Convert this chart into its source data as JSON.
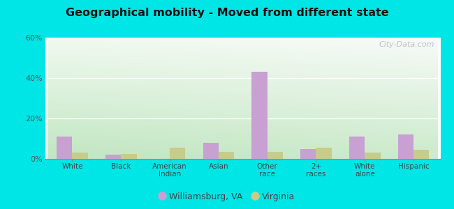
{
  "title": "Geographical mobility - Moved from different state",
  "categories": [
    "White",
    "Black",
    "American\nIndian",
    "Asian",
    "Other\nrace",
    "2+\nraces",
    "White\nalone",
    "Hispanic"
  ],
  "williamsburg": [
    11,
    2,
    0,
    8,
    43,
    5,
    11,
    12
  ],
  "virginia": [
    3,
    2.5,
    5.5,
    3.5,
    3.5,
    5.5,
    3,
    4.5
  ],
  "color_williamsburg": "#c8a0d2",
  "color_virginia": "#c8cc88",
  "ylim": [
    0,
    60
  ],
  "yticks": [
    0,
    20,
    40,
    60
  ],
  "ytick_labels": [
    "0%",
    "20%",
    "40%",
    "60%"
  ],
  "bg_top_left": "#d0eed8",
  "bg_top_right": "#f0f8f0",
  "bg_bottom_left": "#c8e8c0",
  "bg_bottom_right": "#e8f4e8",
  "outer_background": "#00e5e5",
  "bar_width": 0.32,
  "legend_williamsburg": "Williamsburg, VA",
  "legend_virginia": "Virginia",
  "watermark": "City-Data.com"
}
